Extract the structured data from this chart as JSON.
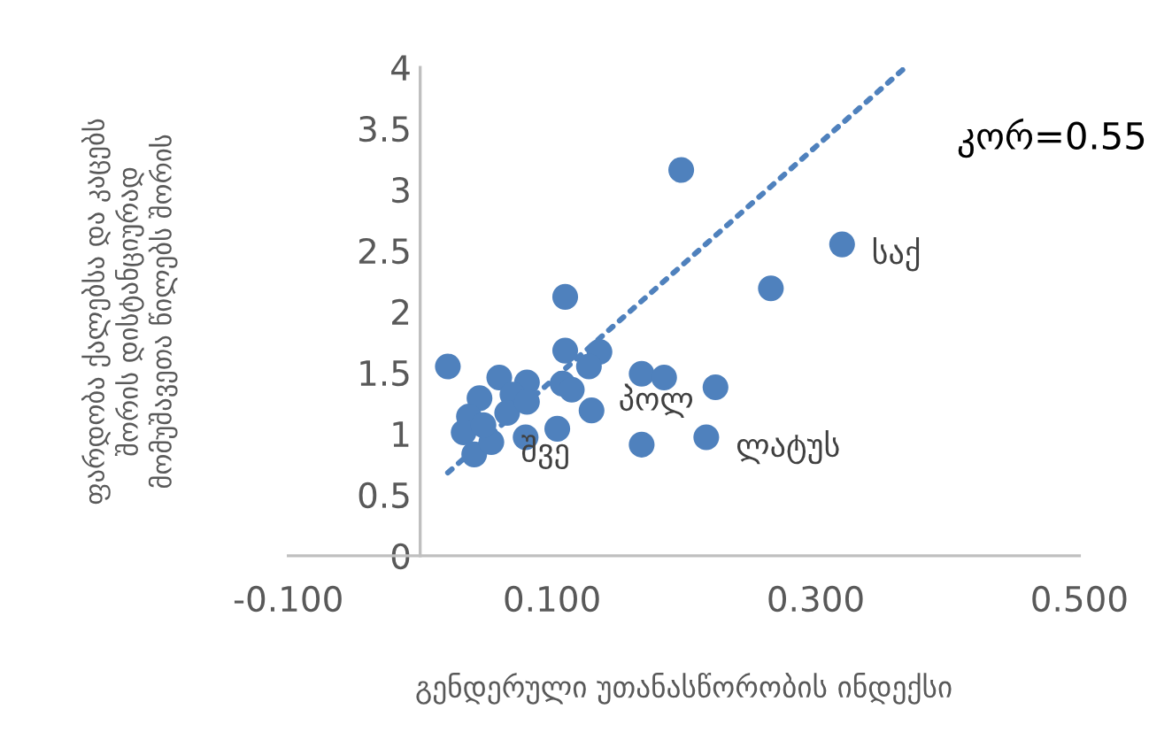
{
  "chart_data": {
    "type": "scatter",
    "xlabel": "გენდერული უთანასწორობის ინდექსი",
    "ylabel": "ფარდობა ქალებსა და კაცებს\nშორის დისტანციურად\nმომუშავეთა წილებს შორის",
    "xlim": [
      -0.1,
      0.5
    ],
    "xticks": [
      {
        "value": -0.1,
        "label": "-0.100"
      },
      {
        "value": 0.1,
        "label": "0.100"
      },
      {
        "value": 0.3,
        "label": "0.300"
      },
      {
        "value": 0.5,
        "label": "0.500"
      }
    ],
    "ylim": [
      0,
      4
    ],
    "yticks": [
      0,
      {
        "value": 0.5,
        "label": "0.5"
      },
      1,
      {
        "value": 1.5,
        "label": "1.5"
      },
      2,
      {
        "value": 2.5,
        "label": "2.5"
      },
      3,
      {
        "value": 3.5,
        "label": "3.5"
      },
      4
    ],
    "grid": false,
    "legend": false,
    "series": [
      {
        "color": "#4f81bd",
        "marker": "circle",
        "x": [
          0.198,
          0.32,
          0.266,
          0.11,
          0.021,
          0.11,
          0.136,
          0.06,
          0.081,
          0.168,
          0.185,
          0.224,
          0.108,
          0.128,
          0.13,
          0.045,
          0.037,
          0.033,
          0.041,
          0.054,
          0.08,
          0.104,
          0.07,
          0.168,
          0.217,
          0.048,
          0.066,
          0.081,
          0.115
        ],
        "values": [
          3.16,
          2.55,
          2.19,
          2.12,
          1.55,
          1.68,
          1.67,
          1.46,
          1.42,
          1.49,
          1.46,
          1.38,
          1.41,
          1.55,
          1.19,
          1.29,
          1.14,
          1.01,
          0.83,
          0.93,
          0.97,
          1.04,
          1.32,
          0.91,
          0.97,
          1.07,
          1.17,
          1.26,
          1.36
        ]
      },
      {
        "type": "line",
        "color": "#4f81bd",
        "line_style": "dotted",
        "marker": "none",
        "x": [
          0.021,
          0.368
        ],
        "values": [
          0.68,
          4.0
        ]
      }
    ],
    "annotations": [
      "კორ=0.55",
      {
        "text": "საქ",
        "x": 0.32,
        "y": 2.55
      },
      {
        "text": "პოლ",
        "x": 0.128,
        "y": 1.35
      },
      {
        "text": "შვე",
        "x": 0.054,
        "y": 0.93
      },
      {
        "text": "ლატუს",
        "x": 0.217,
        "y": 0.97
      }
    ]
  }
}
